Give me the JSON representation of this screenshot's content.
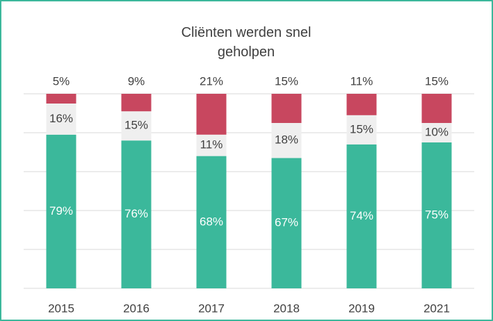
{
  "chart_data": {
    "type": "stacked-bar",
    "title": "Cliënten werden snel geholpen",
    "categories": [
      "2015",
      "2016",
      "2017",
      "2018",
      "2019",
      "2021"
    ],
    "series": [
      {
        "color": "#3bb89b",
        "values": [
          79,
          76,
          68,
          67,
          74,
          75
        ],
        "value_labels": [
          "79%",
          "76%",
          "68%",
          "67%",
          "74%",
          "75%"
        ]
      },
      {
        "color": "#efefef",
        "values": [
          16,
          15,
          11,
          18,
          15,
          10
        ],
        "value_labels": [
          "16%",
          "15%",
          "11%",
          "18%",
          "15%",
          "10%"
        ]
      },
      {
        "color": "#c8475f",
        "values": [
          5,
          9,
          21,
          15,
          11,
          15
        ],
        "value_labels": [
          "5%",
          "9%",
          "21%",
          "15%",
          "11%",
          "15%"
        ]
      }
    ],
    "ylim": [
      0,
      100
    ],
    "yticks": [
      0,
      20,
      40,
      60,
      80,
      100
    ],
    "grid": true
  }
}
